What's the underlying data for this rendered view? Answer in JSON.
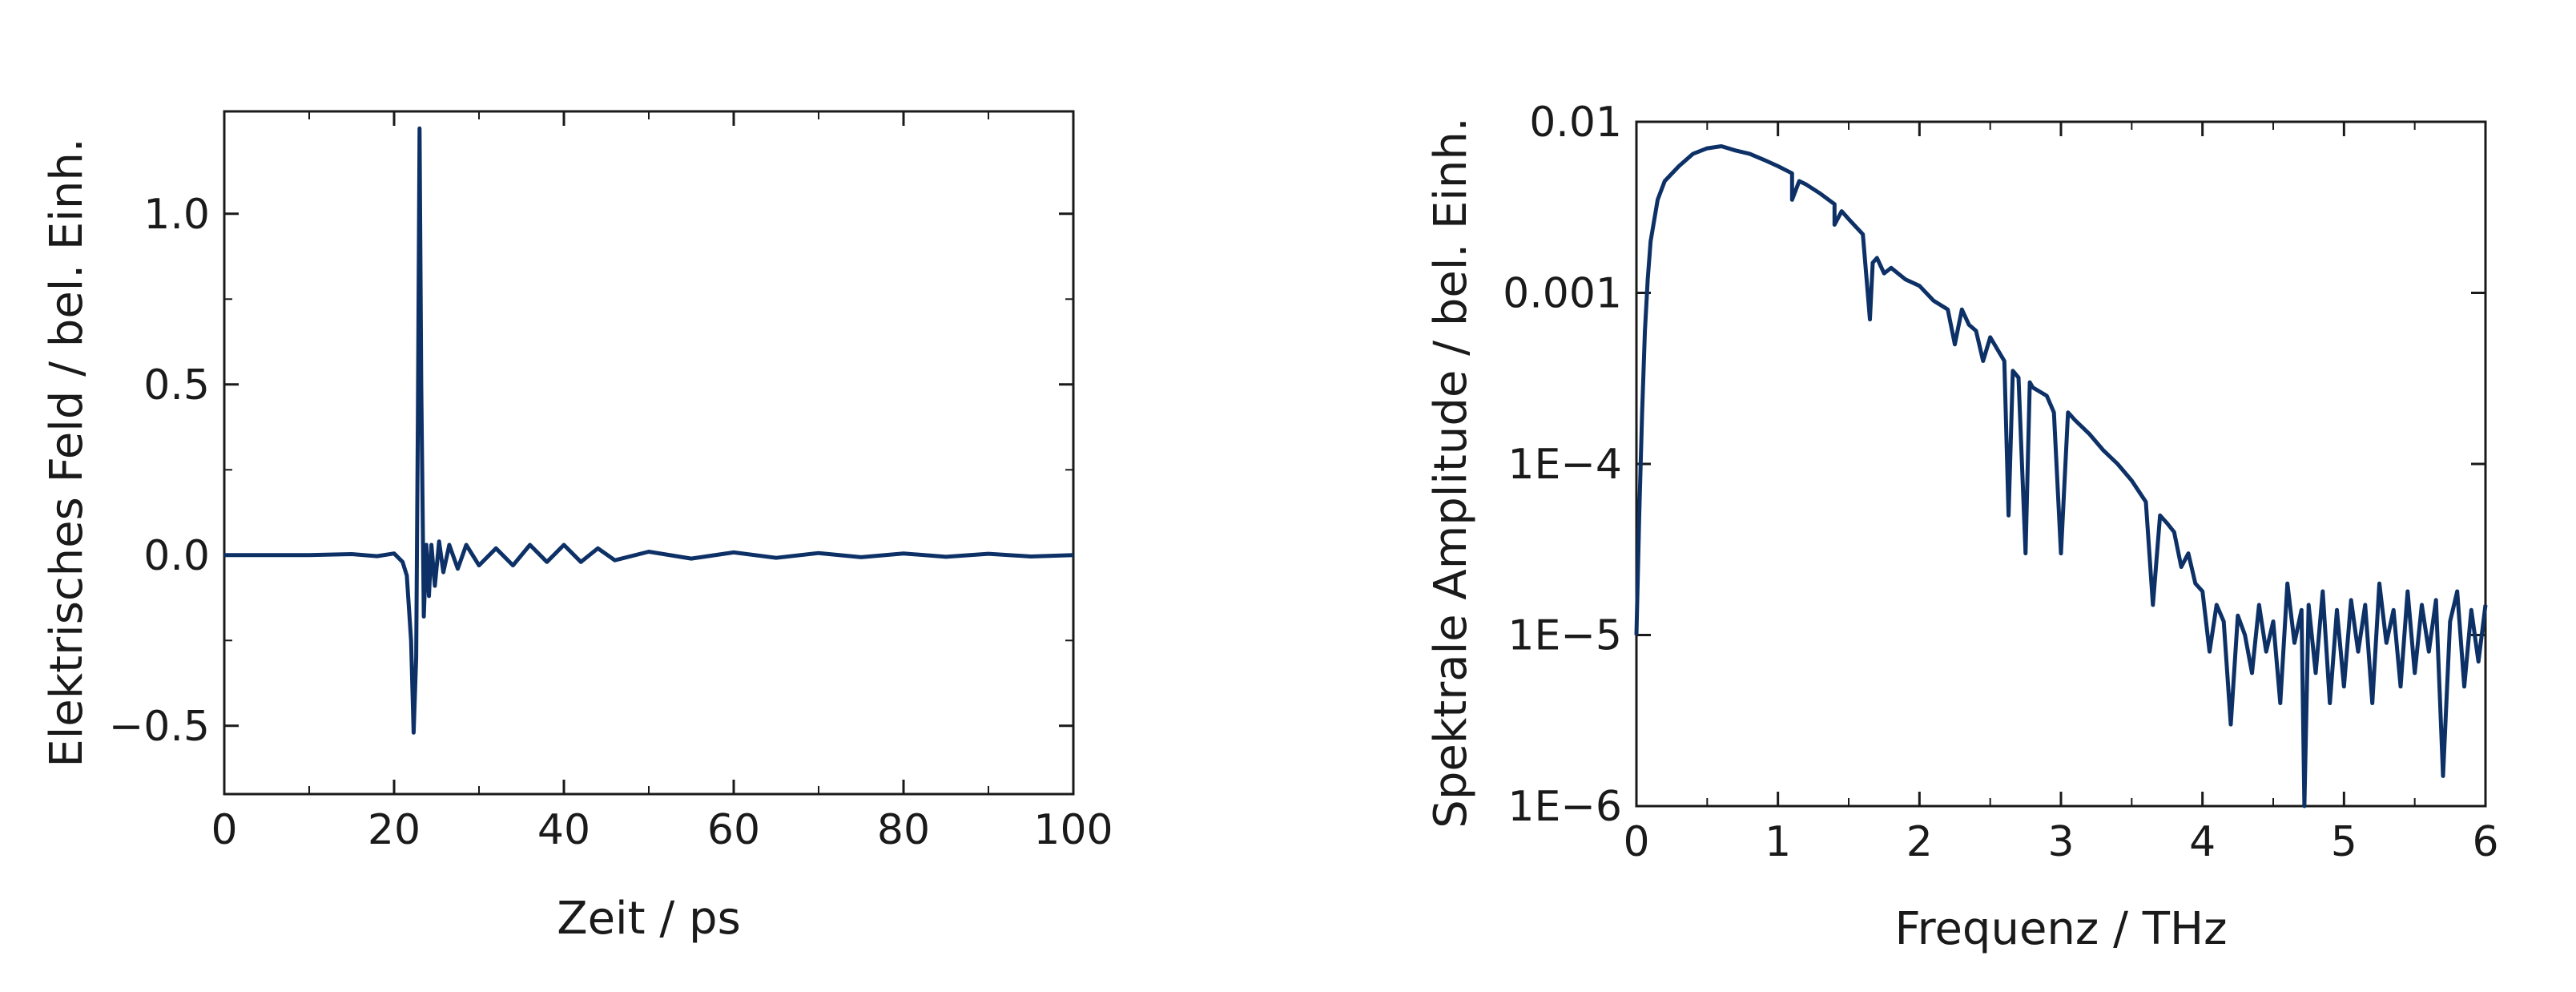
{
  "chart_data": [
    {
      "type": "line",
      "title": "",
      "xlabel": "Zeit / ps",
      "ylabel": "Elektrisches Feld / bel. Einh.",
      "xlim": [
        0,
        100
      ],
      "ylim": [
        -0.7,
        1.3
      ],
      "xticks": [
        0,
        20,
        40,
        60,
        80,
        100
      ],
      "xtick_labels": [
        "0",
        "20",
        "40",
        "60",
        "80",
        "100"
      ],
      "yticks": [
        -0.5,
        0.0,
        0.5,
        1.0
      ],
      "ytick_labels": [
        "−0.5",
        "0.0",
        "0.5",
        "1.0"
      ],
      "line_color": "#0d3166",
      "grid": false,
      "series": [
        {
          "x": [
            0,
            10,
            15,
            18,
            20,
            21,
            21.5,
            22,
            22.3,
            22.6,
            22.8,
            23.0,
            23.2,
            23.5,
            23.8,
            24.1,
            24.4,
            24.8,
            25.3,
            25.8,
            26.5,
            27.5,
            28.5,
            30,
            32,
            34,
            36,
            38,
            40,
            42,
            44,
            46,
            50,
            55,
            60,
            65,
            70,
            75,
            80,
            85,
            90,
            95,
            100
          ],
          "y": [
            0.0,
            0.0,
            0.003,
            -0.003,
            0.005,
            -0.02,
            -0.06,
            -0.25,
            -0.52,
            -0.3,
            0.4,
            1.25,
            0.5,
            -0.18,
            0.03,
            -0.12,
            0.03,
            -0.09,
            0.04,
            -0.05,
            0.03,
            -0.04,
            0.03,
            -0.03,
            0.02,
            -0.03,
            0.03,
            -0.02,
            0.03,
            -0.02,
            0.02,
            -0.015,
            0.01,
            -0.01,
            0.008,
            -0.008,
            0.006,
            -0.006,
            0.005,
            -0.005,
            0.004,
            -0.004,
            0.0
          ]
        }
      ]
    },
    {
      "type": "line",
      "title": "",
      "xlabel": "Frequenz / THz",
      "ylabel": "Spektrale Amplitude / bel. Einh.",
      "xscale": "linear",
      "yscale": "log",
      "xlim": [
        0,
        6
      ],
      "ylim": [
        1e-06,
        0.01
      ],
      "xticks": [
        0,
        1,
        2,
        3,
        4,
        5,
        6
      ],
      "xtick_labels": [
        "0",
        "1",
        "2",
        "3",
        "4",
        "5",
        "6"
      ],
      "yticks": [
        0.01,
        0.001,
        0.0001,
        1e-05,
        1e-06
      ],
      "ytick_labels": [
        "0.01",
        "0.001",
        "1E−4",
        "1E−5",
        "1E−6"
      ],
      "line_color": "#0d3166",
      "grid": false,
      "series": [
        {
          "x": [
            0.0,
            0.02,
            0.04,
            0.06,
            0.08,
            0.1,
            0.15,
            0.2,
            0.3,
            0.4,
            0.5,
            0.6,
            0.7,
            0.8,
            0.9,
            1.0,
            1.1,
            1.1,
            1.15,
            1.2,
            1.3,
            1.4,
            1.4,
            1.45,
            1.5,
            1.6,
            1.65,
            1.67,
            1.7,
            1.75,
            1.8,
            1.9,
            2.0,
            2.1,
            2.2,
            2.25,
            2.3,
            2.35,
            2.4,
            2.45,
            2.5,
            2.6,
            2.63,
            2.66,
            2.7,
            2.75,
            2.78,
            2.8,
            2.9,
            2.95,
            3.0,
            3.05,
            3.1,
            3.2,
            3.3,
            3.4,
            3.5,
            3.6,
            3.65,
            3.7,
            3.75,
            3.8,
            3.85,
            3.9,
            3.95,
            4.0,
            4.05,
            4.1,
            4.15,
            4.2,
            4.25,
            4.3,
            4.35,
            4.4,
            4.45,
            4.5,
            4.55,
            4.6,
            4.65,
            4.7,
            4.72,
            4.75,
            4.8,
            4.85,
            4.9,
            4.95,
            5.0,
            5.05,
            5.1,
            5.15,
            5.2,
            5.25,
            5.3,
            5.35,
            5.4,
            5.45,
            5.5,
            5.55,
            5.6,
            5.65,
            5.7,
            5.75,
            5.8,
            5.85,
            5.9,
            5.95,
            6.0
          ],
          "y": [
            1e-05,
            5e-05,
            0.0002,
            0.0006,
            0.0012,
            0.002,
            0.0035,
            0.0045,
            0.0055,
            0.0065,
            0.007,
            0.0072,
            0.0068,
            0.0065,
            0.006,
            0.0055,
            0.005,
            0.0035,
            0.0045,
            0.0043,
            0.0038,
            0.0033,
            0.0025,
            0.003,
            0.0027,
            0.0022,
            0.0007,
            0.0015,
            0.0016,
            0.0013,
            0.0014,
            0.0012,
            0.0011,
            0.0009,
            0.0008,
            0.0005,
            0.0008,
            0.00065,
            0.0006,
            0.0004,
            0.00055,
            0.0004,
            5e-05,
            0.00035,
            0.00032,
            3e-05,
            0.0003,
            0.00028,
            0.00025,
            0.0002,
            3e-05,
            0.0002,
            0.00018,
            0.00015,
            0.00012,
            0.0001,
            8e-05,
            6e-05,
            1.5e-05,
            5e-05,
            4.5e-05,
            4e-05,
            2.5e-05,
            3e-05,
            2e-05,
            1.8e-05,
            8e-06,
            1.5e-05,
            1.2e-05,
            3e-06,
            1.3e-05,
            1e-05,
            6e-06,
            1.5e-05,
            8e-06,
            1.2e-05,
            4e-06,
            2e-05,
            9e-06,
            1.4e-05,
            1e-06,
            1.5e-05,
            6e-06,
            1.8e-05,
            4e-06,
            1.4e-05,
            5e-06,
            1.6e-05,
            8e-06,
            1.5e-05,
            4e-06,
            2e-05,
            9e-06,
            1.4e-05,
            5e-06,
            1.8e-05,
            6e-06,
            1.5e-05,
            8e-06,
            1.6e-05,
            1.5e-06,
            1.2e-05,
            1.8e-05,
            5e-06,
            1.4e-05,
            7e-06,
            1.5e-05
          ]
        }
      ]
    }
  ]
}
